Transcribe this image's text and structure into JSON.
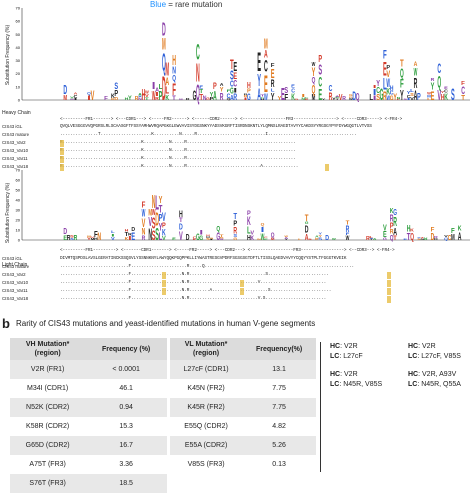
{
  "panel_a": {
    "legend_text": "Blue = rare mutation",
    "legend_blue": "Blue",
    "legend_rest": " = rare mutation",
    "heavy": {
      "ylabel": "Substitution Frequency (%)",
      "yticks": [
        "70",
        "60",
        "50",
        "40",
        "30",
        "20",
        "10",
        "0"
      ],
      "chain_label": "Heavy Chain",
      "regions": "<---------FR1-------> <---CDR1---> <-----FR2------> <------CDR2------> <-----------------FR3-----------------> <-----CDR3-----> <-FR4->",
      "rows": [
        {
          "label": "CIS43 iGL",
          "seq": "QVQLVESGGGVVQPGRSLRLSCAASGFTFSSYAMHWVRQAPGKGLEWVAVISYDGSNKYYADSVKGRFTISRDNSKNTLYLQMNSLRAEDTAVYYCAKDSYYRGSGYPYFDYWGQGTLVTVSS"
        },
        {
          "label": "CIS43 mature",
          "seq": "...............T....................K..........N.....R...........................I..................................."
        },
        {
          "label": "CIS43_Var2",
          "seq": "R...............................K..........N.....R..........................................."
        },
        {
          "label": "CIS43_Var10",
          "seq": "R...............................K..........N.....R..........................................."
        },
        {
          "label": "CIS43_Var11",
          "seq": "R...............................K..........N.....R..........................................."
        },
        {
          "label": "CIS43_Var18",
          "seq": "R...............................K..........N.....R.............................A.............."
        }
      ]
    },
    "light": {
      "ylabel": "Substitution Frequency (%)",
      "yticks": [
        "70",
        "60",
        "50",
        "40",
        "30",
        "20",
        "10",
        "0"
      ],
      "chain_label": "Light Chain",
      "regions": "<---------FR1---------> <-------CDR1-------> <-----FR2-----> <---CDR2---> <-----------------FR3-----------------> <--CDR3--> <-FR4->",
      "rows": [
        {
          "label": "CIS43 iGL",
          "seq": "DIVMTQSPDSLAVSLGERATINCKSSQSVLYSSNNKNYLAWYQQKPGQPPKLLIYWASTRESGVPDRFSGSGSGTDFTLTISSLQAEDVAVYYCQQYYSTPLTFGGGTKVEIK"
        },
        {
          "label": "CIS43 mature",
          "seq": "...........................F......................R.....Q..........................................................."
        },
        {
          "label": "CIS43_Var2",
          "seq": "...........................F....................N.R..............................S........................"
        },
        {
          "label": "CIS43_Var10",
          "seq": "...........................F....................N.R...........................V.........................."
        },
        {
          "label": "CIS43_Var11",
          "seq": "...........................F....................N.R........A......................S........................"
        },
        {
          "label": "CIS43_Var18",
          "seq": "...........................F....................N.R...........................V.S........................"
        }
      ]
    }
  },
  "panel_b": {
    "label": "b",
    "title": "Rarity of CIS43 mutations and yeast-identified mutations in human V-gene segments",
    "vh": {
      "headers": [
        "VH Mutation*\n(region)",
        "Frequency (%)"
      ],
      "rows": [
        [
          "V2R (FR1)",
          "< 0.0001"
        ],
        [
          "M34I (CDR1)",
          "46.1"
        ],
        [
          "N52K (CDR2)",
          "0.94"
        ],
        [
          "K58R (CDR2)",
          "15.3"
        ],
        [
          "G65D (CDR2)",
          "16.7"
        ],
        [
          "A75T (FR3)",
          "3.36"
        ],
        [
          "S76T (FR3)",
          "18.5"
        ]
      ]
    },
    "vl": {
      "headers": [
        "VL Mutation*\n(region)",
        "Frequency(%)"
      ],
      "rows": [
        [
          "L27cF (CDR1)",
          "13.1"
        ],
        [
          "K45N (FR2)",
          "7.75"
        ],
        [
          "K45R (FR2)",
          "7.75"
        ],
        [
          "E55Q (CDR2)",
          "4.82"
        ],
        [
          "E55A (CDR2)",
          "5.26"
        ],
        [
          "V85S (FR3)",
          "0.13"
        ]
      ]
    },
    "combos": [
      {
        "hc_label": "HC",
        "hc": ": V2R",
        "lc_label": "LC",
        "lc": ": L27cF"
      },
      {
        "hc_label": "HC",
        "hc": ": V2R",
        "lc_label": "LC",
        "lc": ": L27cF, V85S"
      },
      {
        "hc_label": "HC",
        "hc": ": V2R",
        "lc_label": "LC",
        "lc": ": N45R, V85S"
      },
      {
        "hc_label": "HC",
        "hc": ": V2R, A93V",
        "lc_label": "LC",
        "lc": ": N45R, Q55A"
      }
    ]
  },
  "colors": {
    "logo_green": "#2e9e3e",
    "logo_blue": "#2c5fd8",
    "logo_red": "#d43a2a",
    "logo_black": "#222222",
    "logo_purple": "#8a3fa8",
    "logo_orange": "#e07a1f",
    "highlight_yellow": "#e6b93a",
    "table_header": "#dcdcdc",
    "table_stripe": "#e8e8e8"
  }
}
